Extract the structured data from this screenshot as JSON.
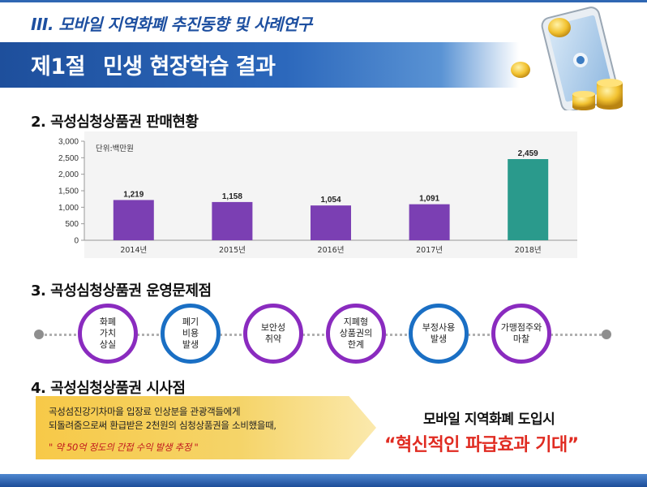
{
  "header": {
    "chapter_title": "III. 모바일 지역화폐 추진동향 및 사례연구",
    "section_number": "제1절",
    "section_title": "민생 현장학습 결과"
  },
  "illustration": {
    "icon": "phone-coins-icon"
  },
  "sales": {
    "heading": "2. 곡성심청상품권 판매현황",
    "chart_data": {
      "type": "bar",
      "unit_label": "단위:백만원",
      "categories": [
        "2014년",
        "2015년",
        "2016년",
        "2017년",
        "2018년"
      ],
      "values": [
        1219,
        1158,
        1054,
        1091,
        2459
      ],
      "value_labels": [
        "1,219",
        "1,158",
        "1,054",
        "1,091",
        "2,459"
      ],
      "y_ticks": [
        0,
        500,
        1000,
        1500,
        2000,
        2500,
        3000
      ],
      "y_tick_labels": [
        "0",
        "500",
        "1,000",
        "1,500",
        "2,000",
        "2,500",
        "3,000"
      ],
      "ylim": [
        0,
        3000
      ],
      "bar_colors": [
        "#7b3fb3",
        "#7b3fb3",
        "#7b3fb3",
        "#7b3fb3",
        "#2a9a8c"
      ],
      "grid": false,
      "background": "#f4f4f4"
    }
  },
  "issues": {
    "heading": "3. 곡성심청상품권 운영문제점",
    "items": [
      {
        "label": "화폐\n가치\n상실",
        "color": "purple"
      },
      {
        "label": "폐기\n비용\n발생",
        "color": "blue"
      },
      {
        "label": "보안성\n취약",
        "color": "purple"
      },
      {
        "label": "지폐형\n상품권의\n한계",
        "color": "purple"
      },
      {
        "label": "부정사용\n발생",
        "color": "blue"
      },
      {
        "label": "가맹점주와\n마찰",
        "color": "purple"
      }
    ]
  },
  "implications": {
    "heading": "4. 곡성심청상품권 시사점",
    "line1": "곡성섬진강기차마을 입장료 인상분을 관광객들에게",
    "line2": "되돌려줌으로써 환급받은 2천원의 심청상품권을 소비했을때,",
    "note": "\" 약  50억 정도의  간접 수익  발생 추정 \"",
    "outcome_sub": "모바일 지역화폐 도입시",
    "outcome_main": "“혁신적인 파급효과 기대”"
  },
  "colors": {
    "primary_blue": "#1e4f9c",
    "purple": "#8a2bbf",
    "blue": "#1a6fc4",
    "accent_red": "#e02b21",
    "gold": "#f5c842"
  }
}
